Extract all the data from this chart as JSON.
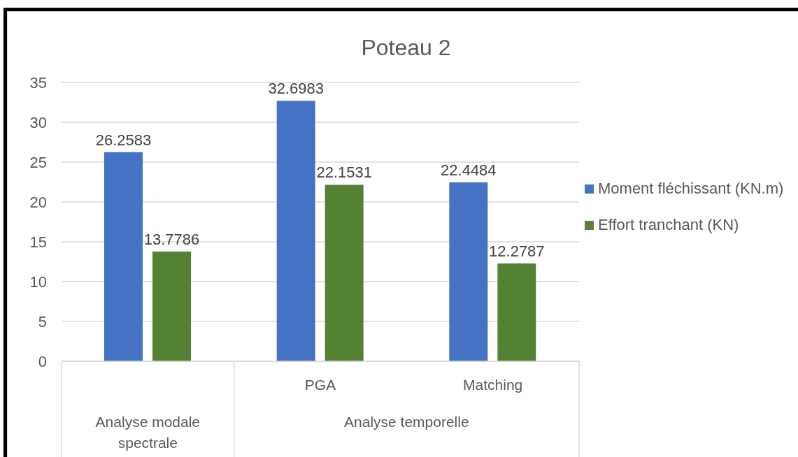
{
  "chart_data": {
    "type": "bar",
    "title": "Poteau 2",
    "categories": [
      null,
      "PGA",
      "Matching"
    ],
    "series": [
      {
        "name": "Moment fléchissant (KN.m)",
        "color": "#4472c4",
        "values": [
          26.2583,
          32.6983,
          22.4484
        ]
      },
      {
        "name": "Effort tranchant (KN)",
        "color": "#548235",
        "values": [
          13.7786,
          22.1531,
          12.2787
        ]
      }
    ],
    "annotations": [
      "Analyse modale spectrale",
      "Analyse temporelle"
    ],
    "ylim": [
      0,
      35
    ],
    "yticks": [
      0,
      5,
      10,
      15,
      20,
      25,
      30,
      35
    ],
    "grid": "y",
    "legend": "right",
    "data_labels": true
  }
}
